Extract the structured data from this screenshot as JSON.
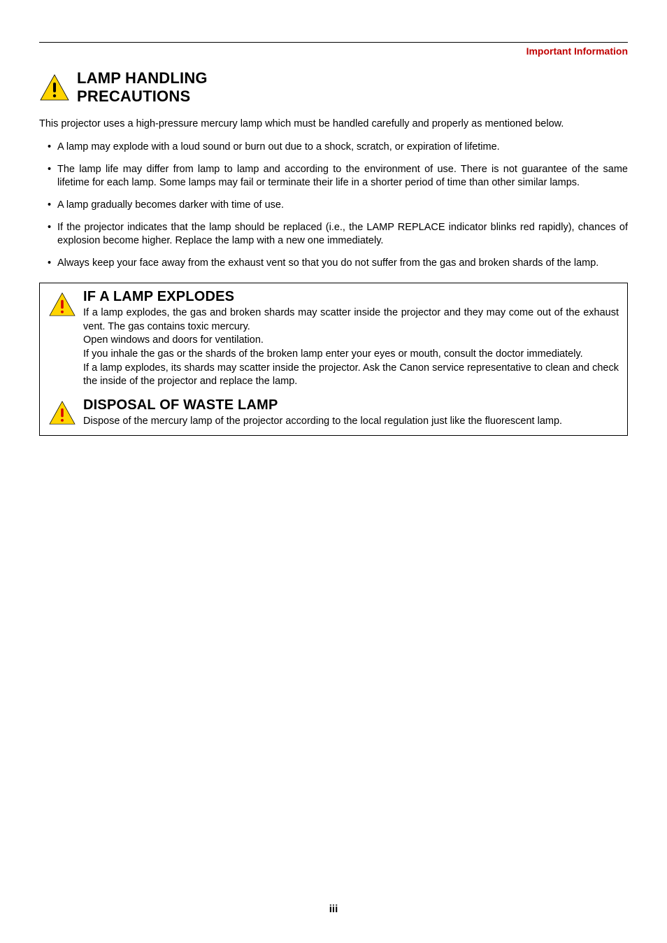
{
  "colors": {
    "header_red": "#c00000",
    "icon_yellow": "#ffd400",
    "icon_red": "#d80000",
    "text": "#000000",
    "background": "#ffffff"
  },
  "header": {
    "label": "Important Information"
  },
  "title": {
    "line1": "LAMP HANDLING",
    "line2": "PRECAUTIONS"
  },
  "intro": "This projector uses a high-pressure mercury lamp which must be handled carefully and properly as mentioned below.",
  "bullets": [
    "A lamp may explode with a loud sound or burn out due to a shock, scratch, or expiration of lifetime.",
    "The lamp life may differ from lamp to lamp and according to the environment of use. There is not guarantee of the same lifetime for each lamp. Some lamps may fail or terminate their life in a shorter period of time than other similar lamps.",
    "A lamp gradually becomes darker with time of use.",
    "If the projector indicates that the lamp should be replaced (i.e., the LAMP REPLACE indicator blinks red rapidly), chances of explosion become higher. Replace the lamp with a new one immediately.",
    "Always keep your face away from the exhaust vent so that you do not suffer from the gas and broken shards of the lamp."
  ],
  "box": {
    "section1": {
      "title": "IF A LAMP EXPLODES",
      "text": "If a lamp explodes, the gas and broken shards may scatter inside the projector and they may come out of the exhaust vent. The gas contains toxic mercury.\nOpen windows and doors for ventilation.\nIf you inhale the gas or the shards of the broken lamp enter your eyes or mouth, consult the doctor immediately.\nIf a lamp explodes, its shards may scatter inside the projector. Ask the Canon service representative to clean and check the inside of the projector and replace the lamp."
    },
    "section2": {
      "title": "DISPOSAL OF WASTE LAMP",
      "text": "Dispose of the mercury lamp of the projector according to the local regulation just like the fluorescent lamp."
    }
  },
  "page_number": "iii"
}
